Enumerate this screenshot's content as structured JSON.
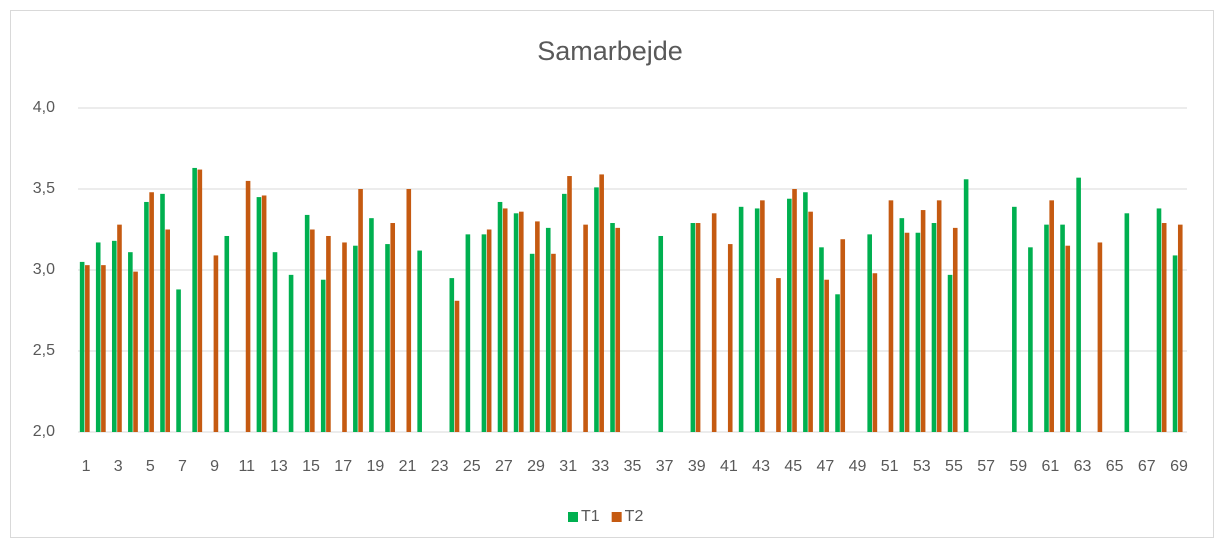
{
  "chart_data": {
    "type": "bar",
    "title": "Samarbejde",
    "categories": [
      "1",
      null,
      "3",
      null,
      "5",
      null,
      "7",
      null,
      "9",
      null,
      "11",
      null,
      "13",
      null,
      "15",
      null,
      "17",
      null,
      "19",
      null,
      "21",
      null,
      "23",
      null,
      "25",
      null,
      "27",
      null,
      "29",
      null,
      "31",
      null,
      "33",
      null,
      "35",
      null,
      "37",
      null,
      "39",
      null,
      "41",
      null,
      "43",
      null,
      "45",
      null,
      "47",
      null,
      "49",
      null,
      "51",
      null,
      "53",
      null,
      "55",
      null,
      "57",
      null,
      "59",
      null,
      "61",
      null,
      "63",
      null,
      "65",
      null,
      "67",
      null,
      "69"
    ],
    "series": [
      {
        "name": "T1",
        "color": "#00b050",
        "values": [
          3.05,
          3.17,
          3.18,
          3.11,
          3.42,
          3.47,
          2.88,
          3.63,
          null,
          3.21,
          null,
          3.45,
          3.11,
          2.97,
          3.34,
          2.94,
          null,
          3.15,
          3.32,
          3.16,
          null,
          3.12,
          null,
          2.95,
          3.22,
          3.22,
          3.42,
          3.35,
          3.1,
          3.26,
          3.47,
          null,
          3.51,
          3.29,
          null,
          null,
          3.21,
          null,
          3.29,
          null,
          null,
          3.39,
          3.38,
          null,
          3.44,
          3.48,
          3.14,
          2.85,
          null,
          3.22,
          null,
          3.32,
          3.23,
          3.29,
          2.97,
          3.56,
          null,
          null,
          3.39,
          3.14,
          3.28,
          3.28,
          3.57,
          null,
          null,
          3.35,
          null,
          3.38,
          3.09
        ]
      },
      {
        "name": "T2",
        "color": "#c55a11",
        "values": [
          3.03,
          3.03,
          3.28,
          2.99,
          3.48,
          3.25,
          null,
          3.62,
          3.09,
          null,
          3.55,
          3.46,
          null,
          null,
          3.25,
          3.21,
          3.17,
          3.5,
          null,
          3.29,
          3.5,
          null,
          null,
          2.81,
          null,
          3.25,
          3.38,
          3.36,
          3.3,
          3.1,
          3.58,
          3.28,
          3.59,
          3.26,
          null,
          null,
          null,
          null,
          3.29,
          3.35,
          3.16,
          null,
          3.43,
          2.95,
          3.5,
          3.36,
          2.94,
          3.19,
          null,
          2.98,
          3.43,
          3.23,
          3.37,
          3.43,
          3.26,
          null,
          null,
          null,
          null,
          null,
          3.43,
          3.15,
          null,
          3.17,
          null,
          null,
          null,
          3.29,
          3.28
        ]
      }
    ],
    "ylim": [
      2.0,
      4.0
    ],
    "yticks": [
      {
        "value": 2.0,
        "label": "2,0"
      },
      {
        "value": 2.5,
        "label": "2,5"
      },
      {
        "value": 3.0,
        "label": "3,0"
      },
      {
        "value": 3.5,
        "label": "3,5"
      },
      {
        "value": 4.0,
        "label": "4,0"
      }
    ],
    "grid": true,
    "legend": "bottom"
  }
}
